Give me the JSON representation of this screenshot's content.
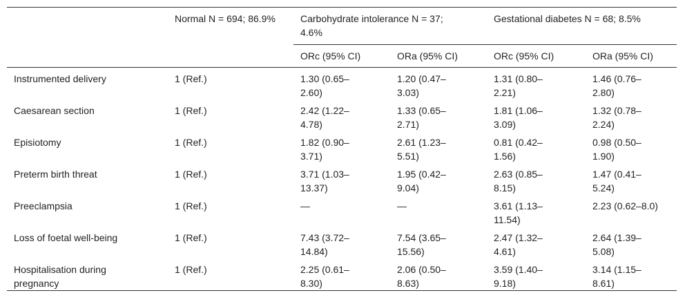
{
  "header": {
    "groups": [
      "Normal N = 694; 86.9%",
      "Carbohydrate intolerance N = 37; 4.6%",
      "Gestational diabetes N = 68; 8.5%"
    ],
    "subheaders": [
      "ORc (95% CI)",
      "ORa (95% CI)",
      "ORc (95% CI)",
      "ORa (95% CI)"
    ]
  },
  "table": {
    "rows": [
      [
        "Instrumented delivery",
        "1 (Ref.)",
        "1.30 (0.65–2.60)",
        "1.20 (0.47–3.03)",
        "1.31 (0.80–2.21)",
        "1.46 (0.76–2.80)"
      ],
      [
        "Caesarean section",
        "1 (Ref.)",
        "2.42 (1.22–4.78)",
        "1.33 (0.65–2.71)",
        "1.81 (1.06–3.09)",
        "1.32 (0.78–2.24)"
      ],
      [
        "Episiotomy",
        "1 (Ref.)",
        "1.82 (0.90–3.71)",
        "2.61 (1.23–5.51)",
        "0.81 (0.42–1.56)",
        "0.98 (0.50–1.90)"
      ],
      [
        "Preterm birth threat",
        "1 (Ref.)",
        "3.71 (1.03–13.37)",
        "1.95 (0.42–9.04)",
        "2.63 (0.85–8.15)",
        "1.47 (0.41–5.24)"
      ],
      [
        "Preeclampsia",
        "1 (Ref.)",
        "—",
        "—",
        "3.61 (1.13–11.54)",
        "2.23 (0.62–8.0)"
      ],
      [
        "Loss of foetal well-being",
        "1 (Ref.)",
        "7.43 (3.72–14.84)",
        "7.54 (3.65–15.56)",
        "2.47 (1.32–4.61)",
        "2.64 (1.39–5.08)"
      ],
      [
        "Hospitalisation during pregnancy",
        "1 (Ref.)",
        "2.25 (0.61–8.30)",
        "2.06 (0.50–8.63)",
        "3.59 (1.40–9.18)",
        "3.14 (1.15–8.61)"
      ]
    ]
  }
}
